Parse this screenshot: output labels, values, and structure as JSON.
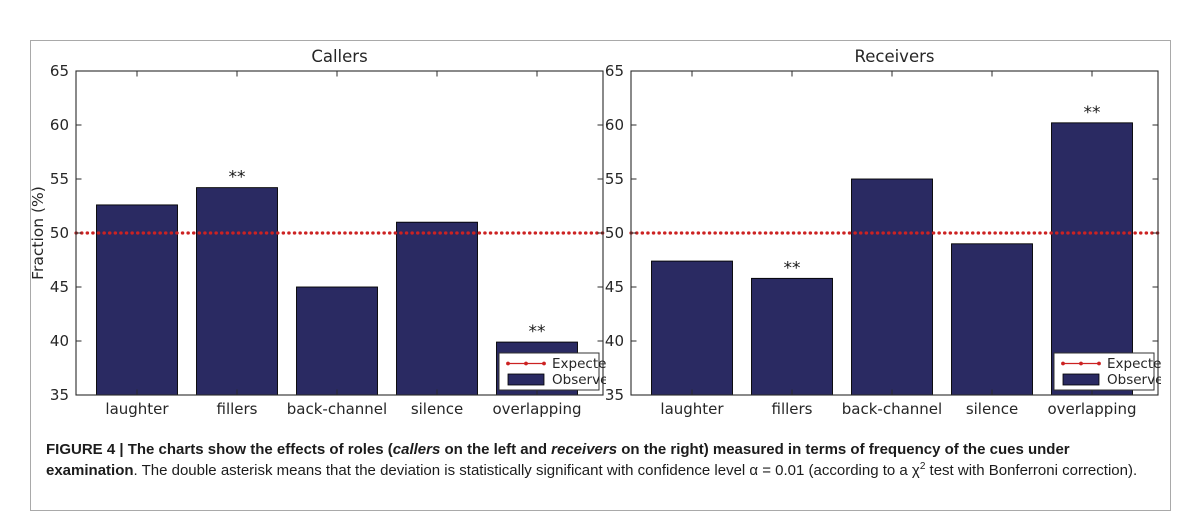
{
  "figure": {
    "caption_segments": [
      {
        "text": "FIGURE 4 | The charts show the effects of roles (",
        "style": "bold"
      },
      {
        "text": "callers",
        "style": "bold-italic"
      },
      {
        "text": " on the left and ",
        "style": "bold"
      },
      {
        "text": "receivers",
        "style": "bold-italic"
      },
      {
        "text": " on the right) measured in terms of frequency of the cues under examination",
        "style": "bold"
      },
      {
        "text": ". The double asterisk means that the deviation is statistically significant with confidence level α = 0.01 (according to a χ",
        "style": "regular"
      },
      {
        "text": "2",
        "style": "superscript"
      },
      {
        "text": " test with Bonferroni correction).",
        "style": "regular"
      }
    ]
  },
  "colors": {
    "bar_fill": "#2a2a62",
    "bar_stroke": "#000000",
    "expected_line": "#cc2222",
    "frame_border": "#a9a9a9",
    "axis": "#2b2b2b",
    "text": "#262626",
    "legend_border": "#333333",
    "background": "#ffffff"
  },
  "chart_data": [
    {
      "type": "bar",
      "title": "Callers",
      "xlabel": "",
      "ylabel": "Fraction (%)",
      "categories": [
        "laughter",
        "fillers",
        "back-channel",
        "silence",
        "overlapping"
      ],
      "series": [
        {
          "name": "Observed",
          "type": "bar",
          "values": [
            52.6,
            54.2,
            45.0,
            51.0,
            39.9
          ]
        },
        {
          "name": "Expected",
          "type": "dotted-line",
          "values": [
            50,
            50,
            50,
            50,
            50
          ]
        }
      ],
      "expected_value": 50,
      "significant": [
        false,
        true,
        false,
        false,
        true
      ],
      "sig_symbol": "**",
      "ylim": [
        35,
        65
      ],
      "yticks": [
        35,
        40,
        45,
        50,
        55,
        60,
        65
      ],
      "grid": false,
      "legend": {
        "position": "lower-right",
        "entries": [
          "Expected",
          "Observed"
        ]
      }
    },
    {
      "type": "bar",
      "title": "Receivers",
      "xlabel": "",
      "ylabel": "",
      "categories": [
        "laughter",
        "fillers",
        "back-channel",
        "silence",
        "overlapping"
      ],
      "series": [
        {
          "name": "Observed",
          "type": "bar",
          "values": [
            47.4,
            45.8,
            55.0,
            49.0,
            60.2
          ]
        },
        {
          "name": "Expected",
          "type": "dotted-line",
          "values": [
            50,
            50,
            50,
            50,
            50
          ]
        }
      ],
      "expected_value": 50,
      "significant": [
        false,
        true,
        false,
        false,
        true
      ],
      "sig_symbol": "**",
      "ylim": [
        35,
        65
      ],
      "yticks": [
        35,
        40,
        45,
        50,
        55,
        60,
        65
      ],
      "grid": false,
      "legend": {
        "position": "lower-right",
        "entries": [
          "Expected",
          "Observed"
        ]
      }
    }
  ]
}
